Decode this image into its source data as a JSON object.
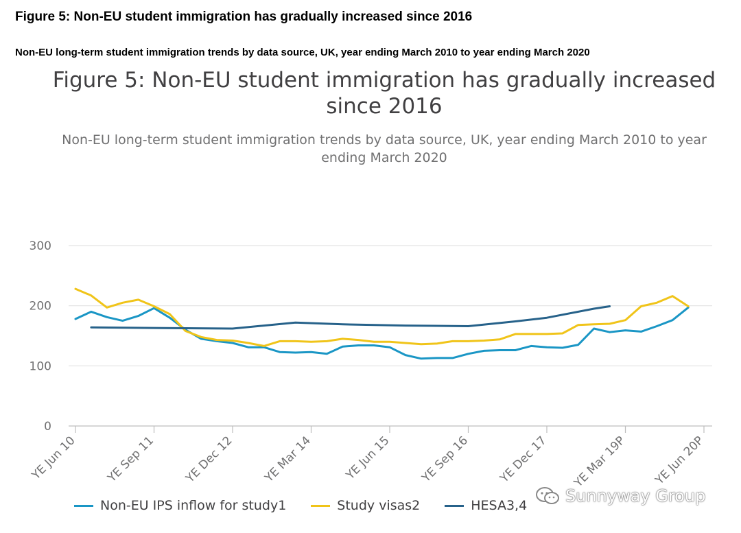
{
  "page": {
    "outer_title": "Figure 5: Non-EU student immigration has gradually increased since 2016",
    "outer_subtitle": "Non-EU long-term student immigration trends by data source, UK, year ending March 2010 to year ending March 2020",
    "watermark": "Sunnyway Group"
  },
  "chart_data": {
    "type": "line",
    "title": "Figure 5: Non-EU student immigration has gradually increased since 2016",
    "subtitle": "Non-EU long-term student immigration trends by data source, UK, year ending March 2010 to year ending March 2020",
    "xlabel": "",
    "ylabel": "",
    "ylim": [
      0,
      300
    ],
    "yticks": [
      0,
      100,
      200,
      300
    ],
    "grid": true,
    "legend_position": "bottom",
    "x_labels": [
      {
        "i": 0,
        "label": "YE Jun 10"
      },
      {
        "i": 5,
        "label": "YE Sep 11"
      },
      {
        "i": 10,
        "label": "YE Dec 12"
      },
      {
        "i": 15,
        "label": "YE Mar 14"
      },
      {
        "i": 20,
        "label": "YE Jun 15"
      },
      {
        "i": 25,
        "label": "YE Sep 16"
      },
      {
        "i": 30,
        "label": "YE Dec 17"
      },
      {
        "i": 35,
        "label": "YE Mar 19P"
      },
      {
        "i": 40,
        "label": "YE Jun 20P"
      }
    ],
    "series": [
      {
        "name": "Non-EU IPS inflow for study1",
        "color": "#1a96c5",
        "values": [
          178,
          190,
          181,
          175,
          183,
          196,
          180,
          160,
          145,
          141,
          138,
          131,
          131,
          123,
          122,
          123,
          120,
          132,
          134,
          134,
          131,
          118,
          112,
          113,
          113,
          120,
          125,
          126,
          126,
          133,
          131,
          130,
          135,
          162,
          156,
          159,
          157,
          166,
          176,
          197,
          null
        ]
      },
      {
        "name": "Study visas2",
        "color": "#f0c419",
        "values": [
          228,
          217,
          197,
          205,
          210,
          199,
          186,
          158,
          148,
          143,
          142,
          138,
          133,
          141,
          141,
          140,
          141,
          145,
          143,
          140,
          140,
          138,
          136,
          137,
          141,
          141,
          142,
          144,
          153,
          153,
          153,
          154,
          168,
          169,
          170,
          176,
          199,
          205,
          216,
          199,
          null
        ]
      },
      {
        "name": "HESA3,4",
        "color": "#27628a",
        "points": [
          [
            1,
            164
          ],
          [
            5,
            163
          ],
          [
            10,
            162
          ],
          [
            14,
            172
          ],
          [
            17,
            169
          ],
          [
            21,
            167
          ],
          [
            25,
            166
          ],
          [
            28,
            174
          ],
          [
            30,
            180
          ],
          [
            33,
            195
          ],
          [
            34,
            199
          ]
        ]
      }
    ]
  }
}
